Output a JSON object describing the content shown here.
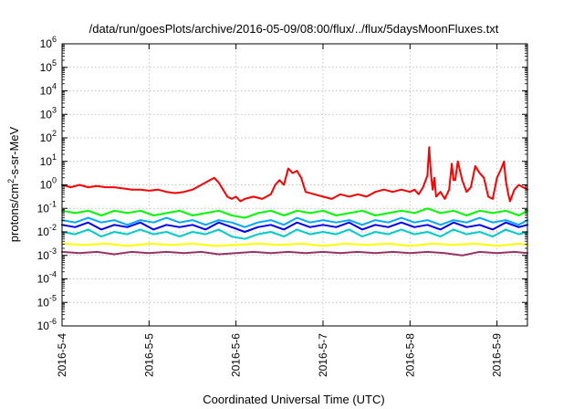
{
  "chart_data": {
    "type": "line",
    "title": "/data/run/goesPlots/archive/2016-05-09/08:00/flux/../flux/5daysMoonFluxes.txt",
    "xlabel": "Coordinated Universal Time (UTC)",
    "ylabel": "protons/cm2-s-sr-MeV",
    "ylabel_parts": {
      "pre": "protons/cm",
      "sup": "2",
      "post": "-s-sr-MeV"
    },
    "yscale": "log",
    "ylim_exponents": [
      -6,
      6
    ],
    "y_tick_labels": [
      {
        "base": "10",
        "exp": "-6"
      },
      {
        "base": "10",
        "exp": "-5"
      },
      {
        "base": "10",
        "exp": "-4"
      },
      {
        "base": "10",
        "exp": "-3"
      },
      {
        "base": "10",
        "exp": "-2"
      },
      {
        "base": "10",
        "exp": "-1"
      },
      {
        "base": "10",
        "exp": "0"
      },
      {
        "base": "10",
        "exp": "1"
      },
      {
        "base": "10",
        "exp": "2"
      },
      {
        "base": "10",
        "exp": "3"
      },
      {
        "base": "10",
        "exp": "4"
      },
      {
        "base": "10",
        "exp": "5"
      },
      {
        "base": "10",
        "exp": "6"
      }
    ],
    "x_tick_labels": [
      "2016-5-4",
      "2016-5-5",
      "2016-5-6",
      "2016-5-7",
      "2016-5-8",
      "2016-5-9"
    ],
    "xlim_days": [
      0,
      5.35
    ],
    "grid": true,
    "series": [
      {
        "color": "#ff0000",
        "x": [
          0.0,
          0.1,
          0.2,
          0.3,
          0.4,
          0.5,
          0.6,
          0.7,
          0.8,
          0.9,
          1.0,
          1.1,
          1.2,
          1.3,
          1.4,
          1.5,
          1.6,
          1.7,
          1.75,
          1.8,
          1.85,
          1.9,
          1.95,
          2.0,
          2.05,
          2.1,
          2.2,
          2.3,
          2.4,
          2.45,
          2.5,
          2.55,
          2.6,
          2.65,
          2.7,
          2.75,
          2.8,
          2.9,
          3.0,
          3.1,
          3.2,
          3.3,
          3.4,
          3.5,
          3.6,
          3.7,
          3.8,
          3.9,
          4.0,
          4.05,
          4.1,
          4.15,
          4.2,
          4.22,
          4.24,
          4.26,
          4.28,
          4.3,
          4.35,
          4.4,
          4.45,
          4.48,
          4.5,
          4.52,
          4.55,
          4.6,
          4.65,
          4.7,
          4.75,
          4.8,
          4.85,
          4.9,
          4.95,
          5.0,
          5.05,
          5.08,
          5.1,
          5.13,
          5.15,
          5.2,
          5.25,
          5.3,
          5.35
        ],
        "y_log10": [
          0.0,
          -0.1,
          0.0,
          -0.1,
          -0.05,
          -0.1,
          -0.1,
          -0.15,
          -0.2,
          -0.2,
          -0.25,
          -0.2,
          -0.3,
          -0.35,
          -0.3,
          -0.2,
          0.0,
          0.2,
          0.3,
          0.1,
          -0.2,
          -0.5,
          -0.6,
          -0.5,
          -0.7,
          -0.6,
          -0.5,
          -0.6,
          -0.4,
          0.0,
          0.2,
          0.0,
          0.7,
          0.5,
          0.6,
          0.3,
          -0.3,
          -0.4,
          -0.5,
          -0.6,
          -0.4,
          -0.5,
          -0.4,
          -0.5,
          -0.3,
          -0.2,
          -0.3,
          -0.2,
          -0.3,
          -0.2,
          -0.4,
          -0.1,
          0.4,
          1.6,
          0.5,
          -0.2,
          0.3,
          -0.5,
          -0.3,
          -0.6,
          -0.2,
          0.9,
          0.2,
          0.2,
          1.0,
          0.2,
          -0.3,
          -0.1,
          0.8,
          0.5,
          0.3,
          -0.5,
          -0.6,
          0.3,
          0.7,
          1.0,
          0.2,
          -0.4,
          -0.7,
          -0.2,
          0.0,
          -0.1,
          -0.2
        ]
      },
      {
        "color": "#00ff00",
        "x": [
          0.0,
          0.15,
          0.3,
          0.45,
          0.6,
          0.75,
          0.9,
          1.05,
          1.2,
          1.35,
          1.5,
          1.65,
          1.8,
          1.95,
          2.1,
          2.25,
          2.4,
          2.55,
          2.7,
          2.85,
          3.0,
          3.15,
          3.3,
          3.45,
          3.6,
          3.75,
          3.9,
          4.05,
          4.2,
          4.35,
          4.5,
          4.65,
          4.8,
          4.95,
          5.1,
          5.25,
          5.35
        ],
        "y_log10": [
          -1.1,
          -1.2,
          -1.1,
          -1.3,
          -1.1,
          -1.2,
          -1.1,
          -1.3,
          -1.2,
          -1.1,
          -1.3,
          -1.2,
          -1.1,
          -1.3,
          -1.4,
          -1.2,
          -1.1,
          -1.3,
          -1.1,
          -1.2,
          -1.1,
          -1.3,
          -1.2,
          -1.1,
          -1.3,
          -1.2,
          -1.1,
          -1.2,
          -1.0,
          -1.2,
          -1.1,
          -1.3,
          -1.1,
          -1.2,
          -1.1,
          -1.3,
          -1.1
        ]
      },
      {
        "color": "#00aaff",
        "x": [
          0.0,
          0.15,
          0.3,
          0.45,
          0.6,
          0.75,
          0.9,
          1.05,
          1.2,
          1.35,
          1.5,
          1.65,
          1.8,
          1.95,
          2.1,
          2.25,
          2.4,
          2.55,
          2.7,
          2.85,
          3.0,
          3.15,
          3.3,
          3.45,
          3.6,
          3.75,
          3.9,
          4.05,
          4.2,
          4.35,
          4.5,
          4.65,
          4.8,
          4.95,
          5.1,
          5.25,
          5.35
        ],
        "y_log10": [
          -1.5,
          -1.6,
          -1.4,
          -1.6,
          -1.5,
          -1.7,
          -1.5,
          -1.6,
          -1.4,
          -1.6,
          -1.5,
          -1.7,
          -1.5,
          -1.6,
          -1.8,
          -1.6,
          -1.5,
          -1.7,
          -1.4,
          -1.6,
          -1.5,
          -1.6,
          -1.5,
          -1.7,
          -1.5,
          -1.6,
          -1.4,
          -1.6,
          -1.5,
          -1.7,
          -1.5,
          -1.6,
          -1.4,
          -1.6,
          -1.5,
          -1.7,
          -1.5
        ]
      },
      {
        "color": "#0000ff",
        "x": [
          0.0,
          0.15,
          0.3,
          0.45,
          0.6,
          0.75,
          0.9,
          1.05,
          1.2,
          1.35,
          1.5,
          1.65,
          1.8,
          1.95,
          2.1,
          2.25,
          2.4,
          2.55,
          2.7,
          2.85,
          3.0,
          3.15,
          3.3,
          3.45,
          3.6,
          3.75,
          3.9,
          4.05,
          4.2,
          4.35,
          4.5,
          4.65,
          4.8,
          4.95,
          5.1,
          5.25,
          5.35
        ],
        "y_log10": [
          -1.7,
          -1.8,
          -1.6,
          -1.9,
          -1.7,
          -1.8,
          -1.6,
          -1.9,
          -1.7,
          -1.8,
          -1.7,
          -1.9,
          -1.6,
          -1.8,
          -2.0,
          -1.8,
          -1.7,
          -1.9,
          -1.6,
          -1.8,
          -1.7,
          -1.8,
          -1.6,
          -1.9,
          -1.7,
          -1.8,
          -1.6,
          -1.8,
          -1.7,
          -1.9,
          -1.6,
          -1.8,
          -1.7,
          -1.9,
          -1.6,
          -1.8,
          -1.7
        ]
      },
      {
        "color": "#00cccc",
        "x": [
          0.0,
          0.15,
          0.3,
          0.45,
          0.6,
          0.75,
          0.9,
          1.05,
          1.2,
          1.35,
          1.5,
          1.65,
          1.8,
          1.95,
          2.1,
          2.25,
          2.4,
          2.55,
          2.7,
          2.85,
          3.0,
          3.15,
          3.3,
          3.45,
          3.6,
          3.75,
          3.9,
          4.05,
          4.2,
          4.35,
          4.5,
          4.65,
          4.8,
          4.95,
          5.1,
          5.25,
          5.35
        ],
        "y_log10": [
          -2.0,
          -2.1,
          -1.9,
          -2.2,
          -2.0,
          -2.1,
          -1.9,
          -2.1,
          -2.0,
          -2.2,
          -2.0,
          -2.1,
          -1.9,
          -2.2,
          -2.3,
          -2.1,
          -2.0,
          -2.2,
          -1.9,
          -2.1,
          -2.0,
          -2.1,
          -1.9,
          -2.2,
          -2.0,
          -2.1,
          -1.9,
          -2.1,
          -2.0,
          -2.2,
          -1.9,
          -2.1,
          -2.0,
          -2.2,
          -1.9,
          -2.1,
          -2.0
        ]
      },
      {
        "color": "#ffff00",
        "x": [
          0.0,
          0.25,
          0.5,
          0.75,
          1.0,
          1.25,
          1.5,
          1.75,
          2.0,
          2.25,
          2.5,
          2.75,
          3.0,
          3.25,
          3.5,
          3.75,
          4.0,
          4.25,
          4.5,
          4.75,
          5.0,
          5.25,
          5.35
        ],
        "y_log10": [
          -2.5,
          -2.55,
          -2.5,
          -2.6,
          -2.5,
          -2.55,
          -2.5,
          -2.6,
          -2.55,
          -2.5,
          -2.55,
          -2.5,
          -2.6,
          -2.5,
          -2.55,
          -2.5,
          -2.6,
          -2.5,
          -2.55,
          -2.5,
          -2.6,
          -2.5,
          -2.55
        ]
      },
      {
        "color": "#993366",
        "x": [
          0.0,
          0.2,
          0.4,
          0.6,
          0.8,
          1.0,
          1.2,
          1.4,
          1.6,
          1.8,
          2.0,
          2.2,
          2.4,
          2.6,
          2.8,
          3.0,
          3.2,
          3.4,
          3.6,
          3.8,
          4.0,
          4.2,
          4.4,
          4.6,
          4.8,
          5.0,
          5.2,
          5.35
        ],
        "y_log10": [
          -2.85,
          -2.9,
          -2.85,
          -2.95,
          -2.85,
          -2.9,
          -2.85,
          -2.9,
          -2.85,
          -2.95,
          -2.9,
          -2.85,
          -2.9,
          -2.85,
          -2.9,
          -2.85,
          -2.9,
          -2.85,
          -2.9,
          -2.85,
          -2.9,
          -2.85,
          -2.9,
          -3.0,
          -2.85,
          -2.9,
          -2.85,
          -2.9
        ]
      }
    ]
  }
}
